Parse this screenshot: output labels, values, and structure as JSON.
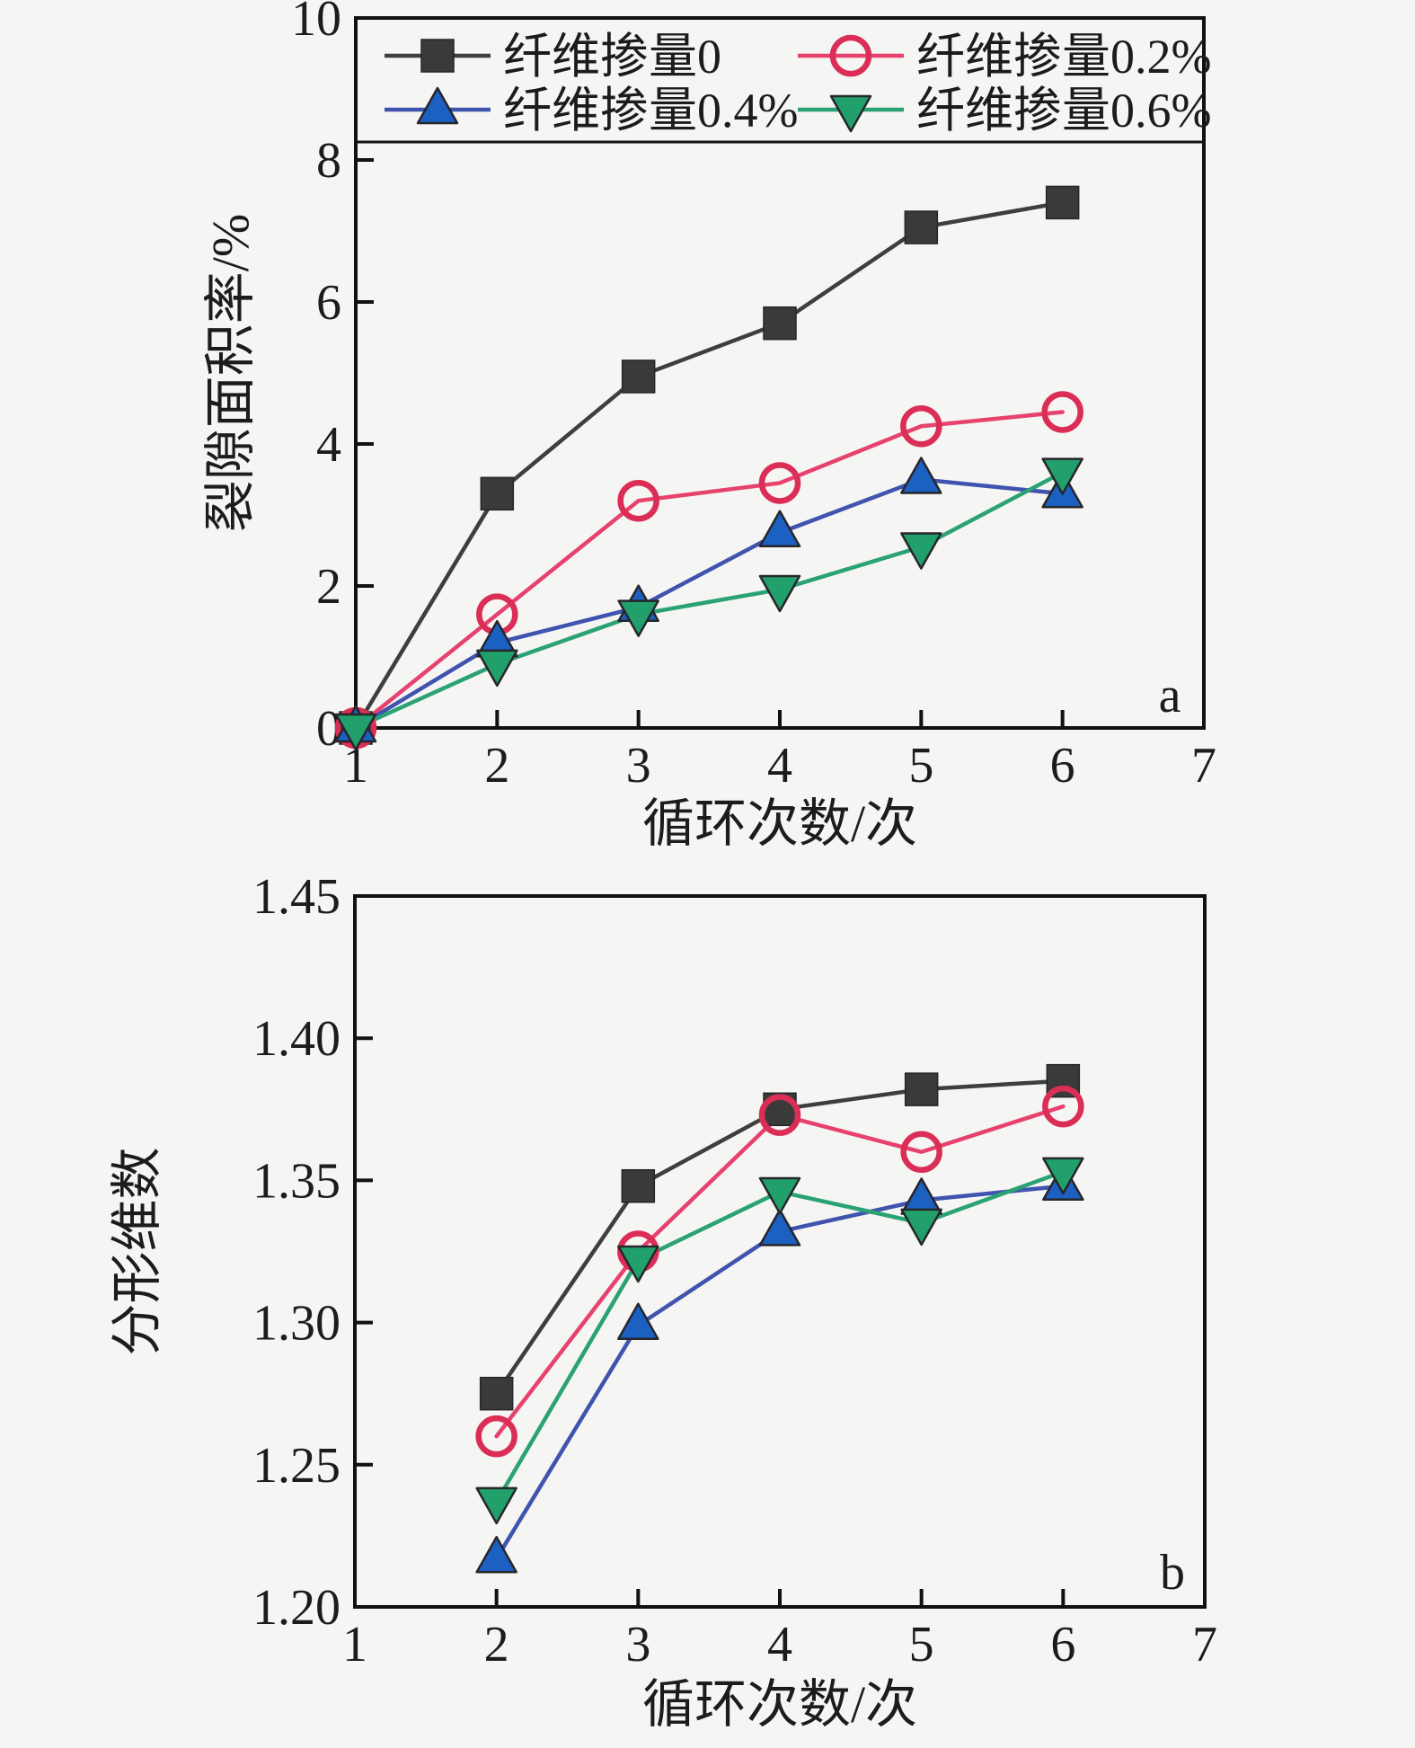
{
  "figure": {
    "background": "#f5f5f3",
    "ink_color": "#1c1c1c",
    "axis_color": "#111111"
  },
  "chart_data": [
    {
      "type": "line",
      "panel_label": "a",
      "title": "",
      "xlabel": "循环次数/次",
      "ylabel": "裂隙面积率/%",
      "xlim": [
        1,
        7
      ],
      "ylim": [
        0,
        10
      ],
      "x_ticks": [
        1,
        2,
        3,
        4,
        5,
        6,
        7
      ],
      "x_tick_labels": [
        "1",
        "2",
        "3",
        "4",
        "5",
        "6",
        "7"
      ],
      "y_ticks": [
        0,
        2,
        4,
        6,
        8,
        10
      ],
      "y_tick_labels": [
        "0",
        "2",
        "4",
        "6",
        "8",
        "10"
      ],
      "grid": false,
      "legend_position": "top-strip",
      "legend_visible": true,
      "x": [
        1,
        2,
        3,
        4,
        5,
        6
      ],
      "series": [
        {
          "name": "纤维掺量0",
          "marker": "square",
          "line_color": "#3e3e3e",
          "marker_color": "#3a3a3a",
          "values": [
            0,
            3.3,
            4.95,
            5.7,
            7.05,
            7.4
          ]
        },
        {
          "name": "纤维掺量0.2%",
          "marker": "circle-open",
          "line_color": "#e6426d",
          "marker_color": "#db2e56",
          "values": [
            0,
            1.6,
            3.2,
            3.45,
            4.25,
            4.45
          ]
        },
        {
          "name": "纤维掺量0.4%",
          "marker": "triangle-up",
          "line_color": "#4053ae",
          "marker_color": "#1c60c2",
          "values": [
            0,
            1.2,
            1.7,
            2.75,
            3.5,
            3.3
          ]
        },
        {
          "name": "纤维掺量0.6%",
          "marker": "triangle-down",
          "line_color": "#2aa273",
          "marker_color": "#21a06b",
          "values": [
            0,
            0.9,
            1.6,
            1.95,
            2.55,
            3.6
          ]
        }
      ]
    },
    {
      "type": "line",
      "panel_label": "b",
      "title": "",
      "xlabel": "循环次数/次",
      "ylabel": "分形维数",
      "xlim": [
        1,
        7
      ],
      "ylim": [
        1.2,
        1.45
      ],
      "x_ticks": [
        1,
        2,
        3,
        4,
        5,
        6,
        7
      ],
      "x_tick_labels": [
        "1",
        "2",
        "3",
        "4",
        "5",
        "6",
        "7"
      ],
      "y_ticks": [
        1.2,
        1.25,
        1.3,
        1.35,
        1.4,
        1.45
      ],
      "y_tick_labels": [
        "1.20",
        "1.25",
        "1.30",
        "1.35",
        "1.40",
        "1.45"
      ],
      "grid": false,
      "legend_position": "none",
      "legend_visible": false,
      "x": [
        2,
        3,
        4,
        5,
        6
      ],
      "series": [
        {
          "name": "纤维掺量0",
          "marker": "square",
          "line_color": "#3e3e3e",
          "marker_color": "#3a3a3a",
          "values": [
            1.275,
            1.348,
            1.375,
            1.382,
            1.385
          ]
        },
        {
          "name": "纤维掺量0.2%",
          "marker": "circle-open",
          "line_color": "#e6426d",
          "marker_color": "#db2e56",
          "values": [
            1.26,
            1.325,
            1.373,
            1.36,
            1.376
          ]
        },
        {
          "name": "纤维掺量0.4%",
          "marker": "triangle-up",
          "line_color": "#4053ae",
          "marker_color": "#1c60c2",
          "values": [
            1.217,
            1.299,
            1.332,
            1.343,
            1.348
          ]
        },
        {
          "name": "纤维掺量0.6%",
          "marker": "triangle-down",
          "line_color": "#2aa273",
          "marker_color": "#21a06b",
          "values": [
            1.237,
            1.322,
            1.346,
            1.335,
            1.353
          ]
        }
      ]
    }
  ]
}
